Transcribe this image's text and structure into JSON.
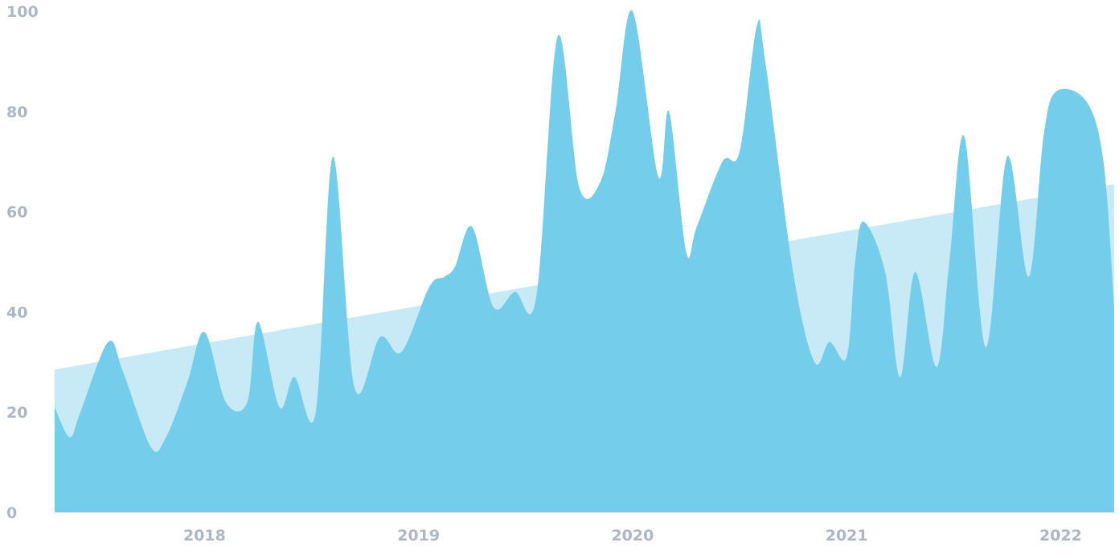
{
  "chart_data": {
    "type": "area",
    "title": "",
    "xlabel": "",
    "ylabel": "",
    "ylim": [
      0,
      100
    ],
    "xlim": [
      2017.3,
      2022.25
    ],
    "grid": false,
    "legend": "none",
    "yticks": [
      "0",
      "20",
      "40",
      "60",
      "80",
      "100"
    ],
    "xticks": [
      {
        "label": "2018",
        "value": 2018.0
      },
      {
        "label": "2019",
        "value": 2019.0
      },
      {
        "label": "2020",
        "value": 2020.0
      },
      {
        "label": "2021",
        "value": 2021.0
      },
      {
        "label": "2022",
        "value": 2022.0
      }
    ],
    "colors": {
      "series": "#74cdea",
      "trend": "#c8eaf6",
      "tick": "#adb7c6"
    },
    "trend": {
      "x": [
        2017.3,
        2022.25
      ],
      "y": [
        28.5,
        65.5
      ]
    },
    "series": [
      {
        "x": [
          2017.3,
          2017.37,
          2017.42,
          2017.55,
          2017.62,
          2017.75,
          2017.82,
          2017.92,
          2018.0,
          2018.1,
          2018.2,
          2018.25,
          2018.35,
          2018.42,
          2018.52,
          2018.6,
          2018.7,
          2018.82,
          2018.92,
          2019.05,
          2019.12,
          2019.17,
          2019.25,
          2019.35,
          2019.45,
          2019.55,
          2019.65,
          2019.75,
          2019.85,
          2019.92,
          2020.0,
          2020.12,
          2020.17,
          2020.25,
          2020.3,
          2020.42,
          2020.5,
          2020.58,
          2020.62,
          2020.75,
          2020.85,
          2020.92,
          2021.0,
          2021.04,
          2021.08,
          2021.18,
          2021.25,
          2021.32,
          2021.42,
          2021.48,
          2021.55,
          2021.65,
          2021.75,
          2021.85,
          2021.92,
          2021.98,
          2022.12,
          2022.2,
          2022.25
        ],
        "y": [
          21,
          15,
          20,
          34,
          28,
          13,
          15,
          26,
          36,
          22,
          22,
          38,
          21,
          27,
          20,
          71,
          25,
          35,
          32,
          45,
          47,
          49,
          57,
          41,
          44,
          43,
          95,
          65,
          66,
          80,
          100,
          67,
          80,
          52,
          57,
          70,
          72,
          97,
          90,
          48,
          30,
          34,
          31,
          50,
          58,
          48,
          27,
          48,
          29,
          50,
          75,
          33,
          71,
          47,
          75,
          84,
          82,
          70,
          41
        ]
      }
    ]
  }
}
